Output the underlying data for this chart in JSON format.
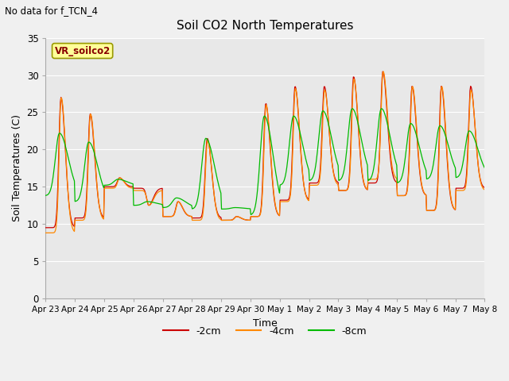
{
  "title": "Soil CO2 North Temperatures",
  "subtitle": "No data for f_TCN_4",
  "xlabel": "Time",
  "ylabel": "Soil Temperatures (C)",
  "legend_label": "VR_soilco2",
  "ylim": [
    0,
    35
  ],
  "yticks": [
    0,
    5,
    10,
    15,
    20,
    25,
    30,
    35
  ],
  "line_colors": {
    "-2cm": "#cc0000",
    "-4cm": "#ff8800",
    "-8cm": "#00bb00"
  },
  "fig_facecolor": "#f0f0f0",
  "ax_facecolor": "#e8e8e8",
  "grid_color": "#ffffff",
  "dates": [
    "Apr 23",
    "Apr 24",
    "Apr 25",
    "Apr 26",
    "Apr 27",
    "Apr 28",
    "Apr 29",
    "Apr 30",
    "May 1",
    "May 2",
    "May 3",
    "May 4",
    "May 5",
    "May 6",
    "May 7",
    "May 8"
  ],
  "peaks_2cm": [
    27.0,
    24.8,
    16.2,
    12.5,
    13.0,
    21.5,
    11.0,
    26.2,
    28.5,
    28.5,
    29.8,
    30.5,
    28.5,
    28.5,
    28.5,
    28.5,
    28.5
  ],
  "troughs_2cm": [
    9.5,
    10.8,
    15.0,
    14.8,
    11.0,
    10.8,
    10.5,
    11.0,
    13.2,
    15.5,
    14.5,
    15.5,
    13.8,
    11.8,
    14.8,
    13.5,
    28.5
  ],
  "peaks_4cm": [
    27.0,
    24.8,
    16.2,
    12.5,
    13.0,
    21.2,
    11.0,
    26.0,
    28.2,
    28.0,
    29.5,
    30.5,
    28.5,
    28.5,
    28.0,
    28.5,
    28.5
  ],
  "troughs_4cm": [
    8.8,
    10.5,
    14.8,
    14.5,
    11.0,
    10.5,
    10.5,
    11.0,
    13.0,
    15.2,
    14.5,
    16.0,
    13.8,
    11.8,
    14.5,
    13.5,
    28.5
  ],
  "peaks_8cm": [
    22.2,
    21.0,
    16.0,
    13.0,
    13.5,
    21.5,
    12.2,
    24.5,
    24.5,
    25.2,
    25.5,
    25.5,
    23.5,
    23.2,
    22.5,
    22.2,
    22.0
  ],
  "troughs_8cm": [
    13.8,
    13.0,
    15.2,
    12.5,
    12.2,
    12.0,
    12.0,
    11.2,
    15.2,
    15.8,
    15.8,
    15.8,
    15.5,
    16.0,
    16.2,
    15.5,
    15.5
  ]
}
